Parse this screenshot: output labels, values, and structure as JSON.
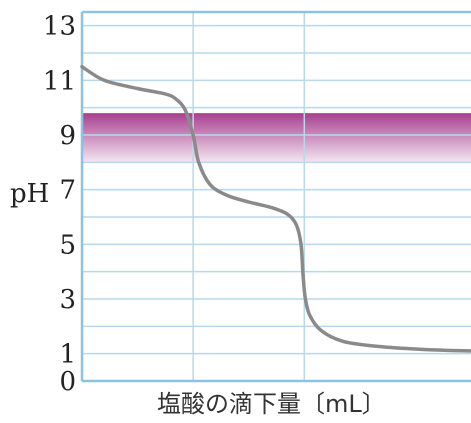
{
  "chart_data": {
    "type": "line",
    "title": "",
    "xlabel": "塩酸の滴下量〔mL〕",
    "ylabel": "pH",
    "xlim": [
      0,
      3.5
    ],
    "ylim": [
      0,
      13.5
    ],
    "yticks": [
      "0",
      "1",
      "3",
      "5",
      "7",
      "9",
      "11",
      "13"
    ],
    "ylabel_tick": "7",
    "x_gridlines": [
      1,
      2
    ],
    "y_gridlines": [
      1,
      2,
      3,
      4,
      5,
      6,
      7,
      8,
      9,
      10,
      11,
      12,
      13
    ],
    "grid": true,
    "indicator_band": {
      "from": 8.0,
      "to": 9.8,
      "color_top": "#a8408f",
      "color_bottom": "#f3e6f1"
    },
    "colors": {
      "axis": "#8ec2e0",
      "grid": "#b8d8ec",
      "curve": "#8a8a8a"
    },
    "series": [
      {
        "values": [
          [
            0.0,
            11.5
          ],
          [
            0.2,
            11.0
          ],
          [
            0.5,
            10.7
          ],
          [
            0.75,
            10.5
          ],
          [
            0.85,
            10.3
          ],
          [
            0.93,
            9.9
          ],
          [
            1.0,
            9.0
          ],
          [
            1.05,
            8.0
          ],
          [
            1.15,
            7.2
          ],
          [
            1.3,
            6.8
          ],
          [
            1.5,
            6.55
          ],
          [
            1.7,
            6.35
          ],
          [
            1.85,
            6.1
          ],
          [
            1.93,
            5.7
          ],
          [
            1.97,
            5.0
          ],
          [
            1.99,
            3.8
          ],
          [
            2.01,
            3.0
          ],
          [
            2.05,
            2.4
          ],
          [
            2.15,
            1.85
          ],
          [
            2.35,
            1.45
          ],
          [
            2.7,
            1.25
          ],
          [
            3.1,
            1.15
          ],
          [
            3.5,
            1.1
          ]
        ]
      }
    ]
  }
}
